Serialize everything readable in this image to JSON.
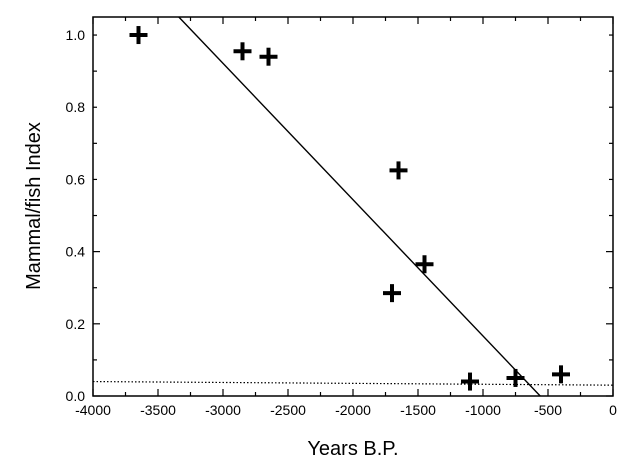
{
  "chart_data": {
    "type": "scatter",
    "xlabel": "Years B.P.",
    "ylabel": "Mammal/fish Index",
    "xlim": [
      -4000,
      0
    ],
    "ylim": [
      0.0,
      1.05
    ],
    "x_ticks": [
      -4000,
      -3500,
      -3000,
      -2500,
      -2000,
      -1500,
      -1000,
      -500,
      0
    ],
    "x_tick_labels": [
      "-4000",
      "-3500",
      "-3000",
      "-2500",
      "-2000",
      "-1500",
      "-1000",
      "-500",
      "0"
    ],
    "y_ticks": [
      0.0,
      0.2,
      0.4,
      0.6,
      0.8,
      1.0
    ],
    "y_tick_labels": [
      "0.0",
      "0.2",
      "0.4",
      "0.6",
      "0.8",
      "1.0"
    ],
    "grid": false,
    "marker": "+",
    "points": [
      {
        "x": -3650,
        "y": 1.0
      },
      {
        "x": -2850,
        "y": 0.955
      },
      {
        "x": -2650,
        "y": 0.94
      },
      {
        "x": -1650,
        "y": 0.625
      },
      {
        "x": -1450,
        "y": 0.365
      },
      {
        "x": -1700,
        "y": 0.285
      },
      {
        "x": -1100,
        "y": 0.04
      },
      {
        "x": -750,
        "y": 0.05
      },
      {
        "x": -400,
        "y": 0.06
      }
    ],
    "regression_line": {
      "x": [
        -3340,
        -560
      ],
      "y": [
        1.05,
        0.0
      ]
    },
    "reference_line": {
      "style": "dotted",
      "y": [
        0.04,
        0.03
      ]
    }
  }
}
